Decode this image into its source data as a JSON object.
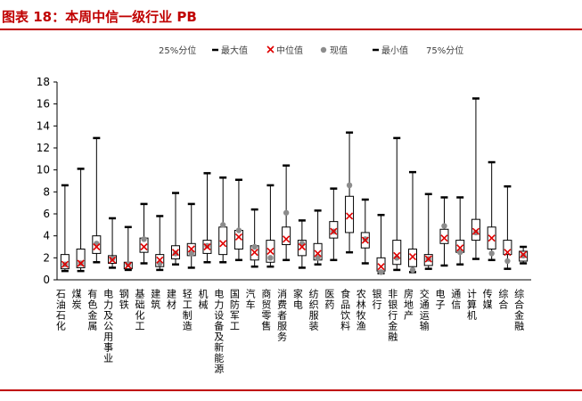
{
  "title": "图表 18：本周中信一级行业 PB",
  "chart_data": {
    "type": "box",
    "legend": {
      "position": "top",
      "items": [
        {
          "label": "25%分位",
          "marker": "none"
        },
        {
          "label": "最大值",
          "marker": "dash"
        },
        {
          "label": "中位值",
          "marker": "x"
        },
        {
          "label": "现值",
          "marker": "dot"
        },
        {
          "label": "最小值",
          "marker": "dash"
        },
        {
          "label": "75%分位",
          "marker": "none"
        }
      ]
    },
    "ylim": [
      0,
      18
    ],
    "yticks": [
      0,
      2,
      4,
      6,
      8,
      10,
      12,
      14,
      16,
      18
    ],
    "grid": false,
    "colors": {
      "box": "#000000",
      "median": "#e00000",
      "current": "#8c8c8c",
      "title": "#c00000"
    },
    "categories": [
      "石油石化",
      "煤炭",
      "有色金属",
      "电力及公用事业",
      "钢铁",
      "基础化工",
      "建筑",
      "建材",
      "轻工制造",
      "机械",
      "电力设备及新能源",
      "国防军工",
      "汽车",
      "商贸零售",
      "消费者服务",
      "家电",
      "纺织服装",
      "医药",
      "食品饮料",
      "农林牧渔",
      "银行",
      "非银行金融",
      "房地产",
      "交通运输",
      "电子",
      "通信",
      "计算机",
      "传媒",
      "综合",
      "综合金融"
    ],
    "series": {
      "max": [
        8.6,
        10.1,
        12.9,
        5.6,
        4.8,
        6.9,
        5.8,
        7.9,
        6.9,
        9.7,
        9.3,
        9.1,
        6.4,
        8.6,
        10.4,
        5.4,
        6.3,
        8.3,
        13.4,
        7.3,
        5.9,
        12.9,
        9.8,
        7.8,
        7.5,
        7.5,
        16.5,
        10.7,
        8.5,
        3.0
      ],
      "q75": [
        2.3,
        2.8,
        4.0,
        2.2,
        1.6,
        3.8,
        2.3,
        3.1,
        3.3,
        3.6,
        4.8,
        4.5,
        3.1,
        3.6,
        4.8,
        3.6,
        3.3,
        5.3,
        7.6,
        4.3,
        2.0,
        3.6,
        2.8,
        2.3,
        4.6,
        3.6,
        5.5,
        4.8,
        3.6,
        2.6
      ],
      "median": [
        1.4,
        1.5,
        3.0,
        1.8,
        1.3,
        3.0,
        1.8,
        2.5,
        2.8,
        3.0,
        3.3,
        3.9,
        2.5,
        2.6,
        3.7,
        3.0,
        2.4,
        4.4,
        5.8,
        3.6,
        1.2,
        2.2,
        2.1,
        1.9,
        3.8,
        2.9,
        4.4,
        3.8,
        2.5,
        2.3
      ],
      "current": [
        1.4,
        1.5,
        3.3,
        1.9,
        1.4,
        3.7,
        1.5,
        2.4,
        2.4,
        3.1,
        5.0,
        4.5,
        3.0,
        2.0,
        6.1,
        3.3,
        2.0,
        4.4,
        8.6,
        3.7,
        0.7,
        2.0,
        0.9,
        1.9,
        4.9,
        2.5,
        4.3,
        2.4,
        1.7,
        2.2
      ],
      "q25": [
        1.0,
        1.1,
        2.4,
        1.5,
        1.0,
        2.5,
        1.2,
        1.9,
        2.2,
        2.4,
        2.3,
        2.8,
        1.8,
        1.6,
        3.2,
        2.2,
        1.8,
        3.8,
        4.3,
        2.9,
        0.8,
        1.4,
        1.2,
        1.3,
        3.3,
        2.5,
        3.6,
        2.8,
        2.3,
        1.7
      ],
      "min": [
        0.8,
        0.8,
        1.6,
        1.1,
        0.9,
        1.5,
        0.9,
        1.4,
        1.1,
        1.6,
        1.6,
        1.8,
        1.2,
        1.2,
        1.8,
        1.1,
        1.4,
        1.8,
        2.5,
        1.5,
        0.6,
        0.9,
        0.7,
        1.0,
        1.3,
        1.4,
        1.9,
        1.8,
        1.0,
        1.5
      ]
    }
  }
}
